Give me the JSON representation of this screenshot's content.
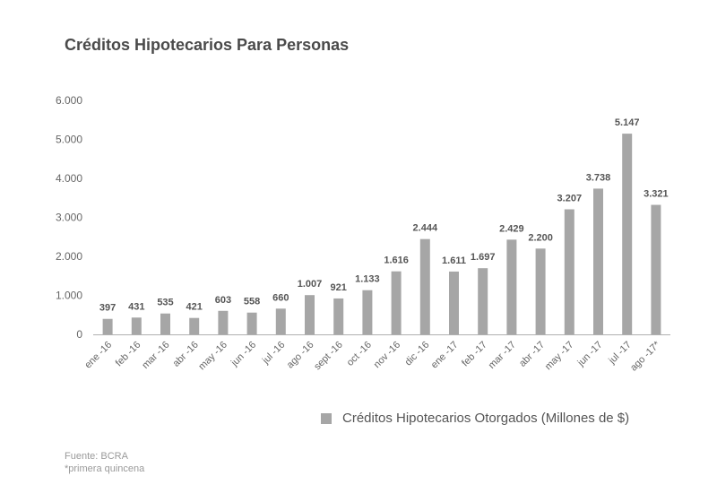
{
  "chart_data": {
    "type": "bar",
    "title": "Créditos Hipotecarios Para Personas",
    "categories": [
      "ene -16",
      "feb -16",
      "mar -16",
      "abr -16",
      "may -16",
      "jun -16",
      "jul -16",
      "ago -16",
      "sept -16",
      "oct -16",
      "nov -16",
      "dic -16",
      "ene -17",
      "feb -17",
      "mar -17",
      "abr -17",
      "may -17",
      "jun -17",
      "jul -17",
      "ago -17*"
    ],
    "series": [
      {
        "name": "Créditos Hipotecarios Otorgados (Millones de $)",
        "values": [
          397,
          431,
          535,
          421,
          603,
          558,
          660,
          1007,
          921,
          1133,
          1616,
          2444,
          1611,
          1697,
          2429,
          2200,
          3207,
          3738,
          5147,
          3321
        ],
        "data_labels": [
          "397",
          "431",
          "535",
          "421",
          "603",
          "558",
          "660",
          "1.007",
          "921",
          "1.133",
          "1.616",
          "2.444",
          "1.611",
          "1.697",
          "2.429",
          "2.200",
          "3.207",
          "3.738",
          "5.147",
          "3.321"
        ]
      }
    ],
    "ylim": [
      0,
      6000
    ],
    "yticks": [
      "0",
      "1.000",
      "2.000",
      "3.000",
      "4.000",
      "5.000",
      "6.000"
    ],
    "grid": false,
    "legend_position": "bottom-right",
    "bar_color": "#a6a6a6"
  },
  "footer": {
    "source": "Fuente: BCRA",
    "note": "*primera quincena"
  }
}
